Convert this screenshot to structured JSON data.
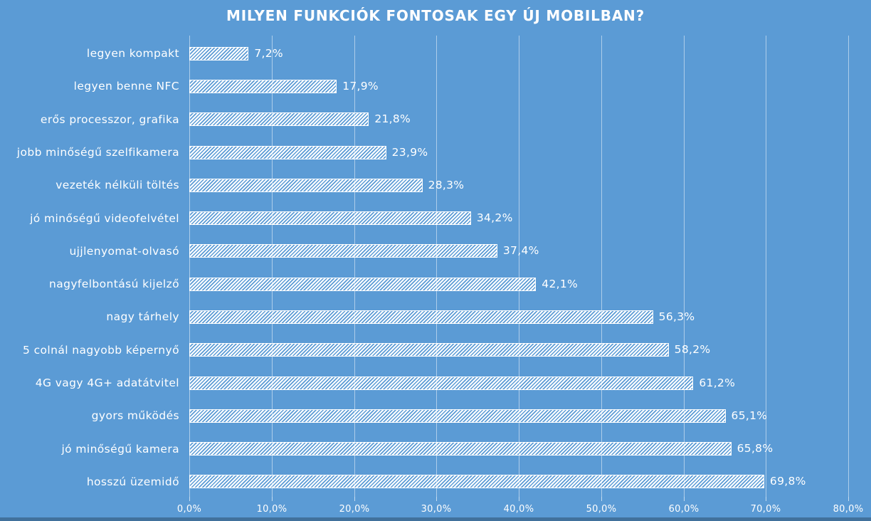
{
  "title": "MILYEN FUNKCIÓK FONTOSAK EGY ÚJ MOBILBAN?",
  "colors": {
    "background": "#5B9BD5",
    "bottom_strip": "#41719C",
    "text": "#FFFFFF",
    "gridline": "rgba(255,255,255,0.5)",
    "tickmark": "rgba(255,255,255,0.65)",
    "bar_stripe": "#FFFFFF"
  },
  "chart_data": {
    "type": "bar",
    "orientation": "horizontal",
    "title": "MILYEN FUNKCIÓK FONTOSAK EGY ÚJ MOBILBAN?",
    "categories": [
      "legyen kompakt",
      "legyen benne NFC",
      "erős processzor, grafika",
      "jobb minőségű szelfikamera",
      "vezeték nélküli töltés",
      "jó minőségű videofelvétel",
      "ujjlenyomat-olvasó",
      "nagyfelbontású kijelző",
      "nagy tárhely",
      "5 colnál nagyobb képernyő",
      "4G vagy 4G+ adatátvitel",
      "gyors működés",
      "jó minőségű kamera",
      "hosszú üzemidő"
    ],
    "values": [
      7.2,
      17.9,
      21.8,
      23.9,
      28.3,
      34.2,
      37.4,
      42.1,
      56.3,
      58.2,
      61.2,
      65.1,
      65.8,
      69.8
    ],
    "value_labels": [
      "7,2%",
      "17,9%",
      "21,8%",
      "23,9%",
      "28,3%",
      "34,2%",
      "37,4%",
      "42,1%",
      "56,3%",
      "58,2%",
      "61,2%",
      "65,1%",
      "65,8%",
      "69,8%"
    ],
    "xlabel": "",
    "ylabel": "",
    "xlim": [
      0,
      80
    ],
    "x_tick_values": [
      0,
      10,
      20,
      30,
      40,
      50,
      60,
      70,
      80
    ],
    "x_tick_labels": [
      "0,0%",
      "10,0%",
      "20,0%",
      "30,0%",
      "40,0%",
      "50,0%",
      "60,0%",
      "70,0%",
      "80,0%"
    ],
    "grid": true,
    "legend": false,
    "bar_style": "diagonal-hatch-white"
  }
}
